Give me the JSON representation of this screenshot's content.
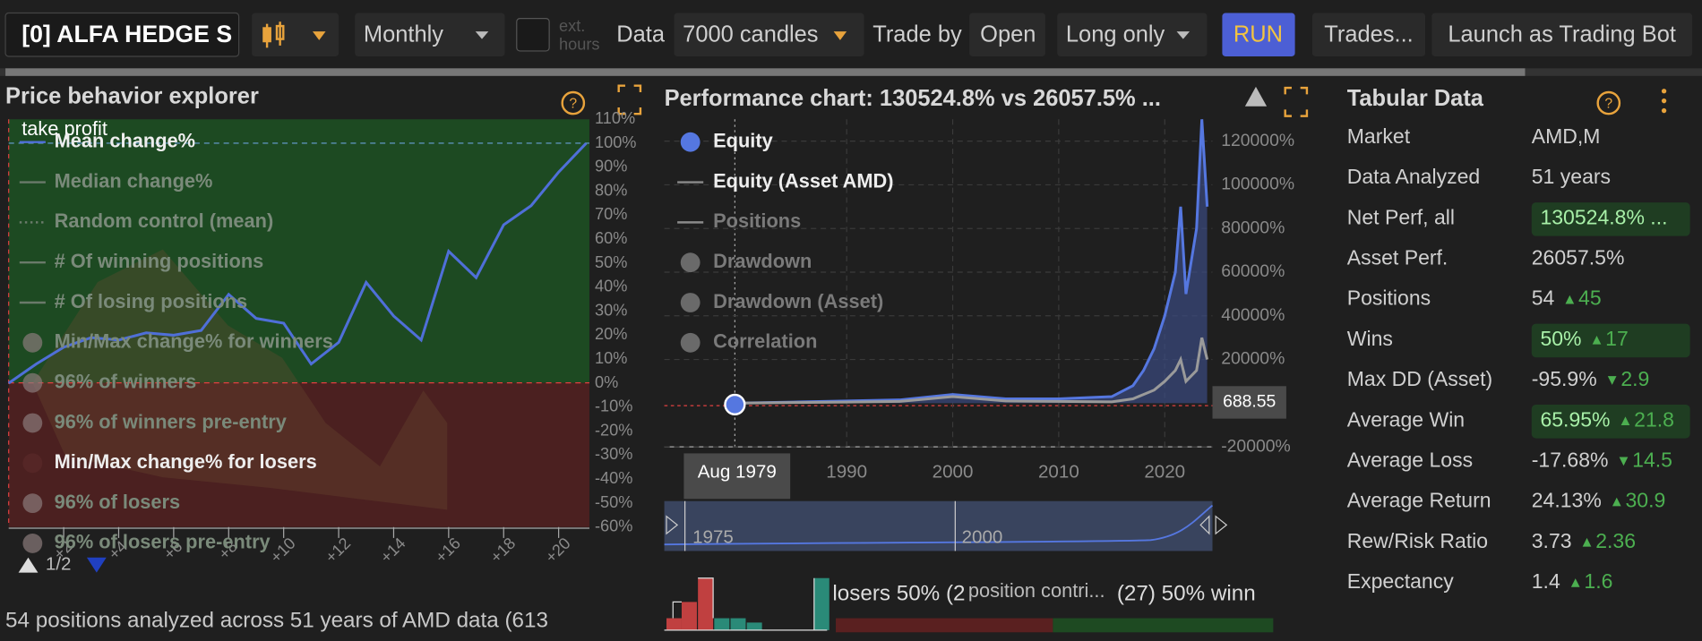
{
  "toolbar": {
    "strategy": "[0] ALFA HEDGE S",
    "timeframe": "Monthly",
    "ext_hours": [
      "ext.",
      "hours"
    ],
    "data_label": "Data",
    "candles": "7000 candles",
    "trade_by_label": "Trade by",
    "trade_by": "Open",
    "direction": "Long only",
    "run": "RUN",
    "trades": "Trades...",
    "launch": "Launch as Trading Bot"
  },
  "explorer": {
    "title": "Price behavior explorer",
    "take_profit": "take profit",
    "legend": [
      {
        "name": "Mean change%",
        "icon": "line",
        "active": true
      },
      {
        "name": "Median change%",
        "icon": "line",
        "active": false
      },
      {
        "name": "Random control (mean)",
        "icon": "dots",
        "active": false
      },
      {
        "name": "# Of winning positions",
        "icon": "line",
        "active": false
      },
      {
        "name": "# Of losing positions",
        "icon": "line",
        "active": false
      },
      {
        "name": "Min/Max change% for winners",
        "icon": "circle",
        "active": false
      },
      {
        "name": "96% of winners",
        "icon": "circle",
        "active": false
      },
      {
        "name": "96% of winners pre-entry",
        "icon": "circle",
        "active": false
      },
      {
        "name": "Min/Max change% for losers",
        "icon": "circle",
        "active": true
      },
      {
        "name": "96% of losers",
        "icon": "circle",
        "active": false
      },
      {
        "name": "96% of losers pre-entry",
        "icon": "circle",
        "active": false
      }
    ],
    "chart_data": {
      "type": "line",
      "series": [
        {
          "name": "Mean change%",
          "color": "#4f6fd8",
          "values": [
            0,
            8,
            15,
            19,
            18,
            21,
            20,
            22,
            37,
            27,
            25,
            8,
            17,
            42,
            28,
            18,
            55,
            44,
            66,
            74,
            88,
            100
          ]
        }
      ],
      "ylim": [
        -60,
        110
      ],
      "yticks": [
        {
          "value": 110,
          "label": "110%"
        },
        {
          "value": 100,
          "label": "100%"
        },
        {
          "value": 90,
          "label": "90%"
        },
        {
          "value": 80,
          "label": "80%"
        },
        {
          "value": 70,
          "label": "70%"
        },
        {
          "value": 60,
          "label": "60%"
        },
        {
          "value": 50,
          "label": "50%"
        },
        {
          "value": 40,
          "label": "40%"
        },
        {
          "value": 30,
          "label": "30%"
        },
        {
          "value": 20,
          "label": "20%"
        },
        {
          "value": 10,
          "label": "10%"
        },
        {
          "value": 0,
          "label": "0%"
        },
        {
          "value": -10,
          "label": "-10%"
        },
        {
          "value": -20,
          "label": "-20%"
        },
        {
          "value": -30,
          "label": "-30%"
        },
        {
          "value": -40,
          "label": "-40%"
        },
        {
          "value": -50,
          "label": "-50%"
        },
        {
          "value": -60,
          "label": "-60%"
        }
      ],
      "xlim": [
        0,
        21
      ],
      "xticks": [
        {
          "value": 2,
          "label": "+2"
        },
        {
          "value": 4,
          "label": "+4"
        },
        {
          "value": 6,
          "label": "+6"
        },
        {
          "value": 8,
          "label": "+8"
        },
        {
          "value": 10,
          "label": "+10"
        },
        {
          "value": 12,
          "label": "+12"
        },
        {
          "value": 14,
          "label": "+14"
        },
        {
          "value": 16,
          "label": "+16"
        },
        {
          "value": 18,
          "label": "+18"
        },
        {
          "value": 20,
          "label": "+20"
        }
      ]
    },
    "pager": "1/2",
    "footer": "54 positions analyzed across 51 years of AMD data (613"
  },
  "performance": {
    "title": "Performance chart: 130524.8% vs 26057.5% ...",
    "legend": [
      {
        "name": "Equity",
        "icon": "circle-blue",
        "active": true
      },
      {
        "name": "Equity (Asset AMD)",
        "icon": "line",
        "active": true
      },
      {
        "name": "Positions",
        "icon": "line",
        "active": false
      },
      {
        "name": "Drawdown",
        "icon": "circle",
        "active": false
      },
      {
        "name": "Drawdown (Asset)",
        "icon": "circle",
        "active": false
      },
      {
        "name": "Correlation",
        "icon": "circle",
        "active": false
      }
    ],
    "chart_data": {
      "type": "area",
      "x": [
        1979,
        1985,
        1990,
        1995,
        2000,
        2005,
        2010,
        2015,
        2017,
        2018,
        2019,
        2020,
        2021,
        2021.5,
        2022,
        2023,
        2023.5,
        2024
      ],
      "series": [
        {
          "name": "Equity",
          "color": "#5577e0",
          "values": [
            0,
            500,
            1000,
            1500,
            4000,
            2000,
            2000,
            3000,
            8000,
            15000,
            25000,
            40000,
            60000,
            90000,
            50000,
            80000,
            130000,
            90000
          ]
        },
        {
          "name": "Equity (Asset AMD)",
          "color": "#9a9a9a",
          "values": [
            0,
            300,
            500,
            800,
            3000,
            1000,
            800,
            600,
            2000,
            4000,
            6000,
            10000,
            15000,
            20000,
            10000,
            15000,
            30000,
            20000
          ]
        }
      ],
      "ylim": [
        -20000,
        130000
      ],
      "yticks": [
        {
          "value": 120000,
          "label": "120000%"
        },
        {
          "value": 100000,
          "label": "100000%"
        },
        {
          "value": 80000,
          "label": "80000%"
        },
        {
          "value": 60000,
          "label": "60000%"
        },
        {
          "value": 40000,
          "label": "40000%"
        },
        {
          "value": 20000,
          "label": "20000%"
        },
        {
          "value": -20000,
          "label": "-20000%"
        }
      ],
      "xlim": [
        1972.8,
        2024.5
      ],
      "xticks": [
        1990,
        2000,
        2010,
        2020
      ]
    },
    "tooltip_date": "Aug 1979",
    "crosshair_value": "688.55",
    "navigator_labels": [
      "1975",
      "2000"
    ],
    "bottom_texts": [
      "losers 50% (2",
      "position contri...",
      "(27) 50% winn"
    ]
  },
  "table": {
    "title": "Tabular Data",
    "rows": [
      {
        "label": "Market",
        "value": "AMD,M"
      },
      {
        "label": "Data Analyzed",
        "value": "51 years"
      },
      {
        "label": "Net Perf, all",
        "value": "130524.8% ...",
        "highlight": true
      },
      {
        "label": "Asset Perf.",
        "value": "26057.5%"
      },
      {
        "label": "Positions",
        "value": "54",
        "delta": "45",
        "direction": "up"
      },
      {
        "label": "Wins",
        "value": "50%",
        "delta": "17",
        "direction": "up",
        "highlight": true
      },
      {
        "label": "Max DD (Asset)",
        "value": "-95.9%",
        "delta": "2.9",
        "direction": "down"
      },
      {
        "label": "Average Win",
        "value": "65.95%",
        "delta": "21.8",
        "direction": "up",
        "highlight": true
      },
      {
        "label": "Average Loss",
        "value": "-17.68%",
        "delta": "14.5",
        "direction": "down"
      },
      {
        "label": "Average Return",
        "value": "24.13%",
        "delta": "30.9",
        "direction": "up"
      },
      {
        "label": "Rew/Risk Ratio",
        "value": "3.73",
        "delta": "2.36",
        "direction": "up"
      },
      {
        "label": "Expectancy",
        "value": "1.4",
        "delta": "1.6",
        "direction": "up"
      }
    ]
  }
}
